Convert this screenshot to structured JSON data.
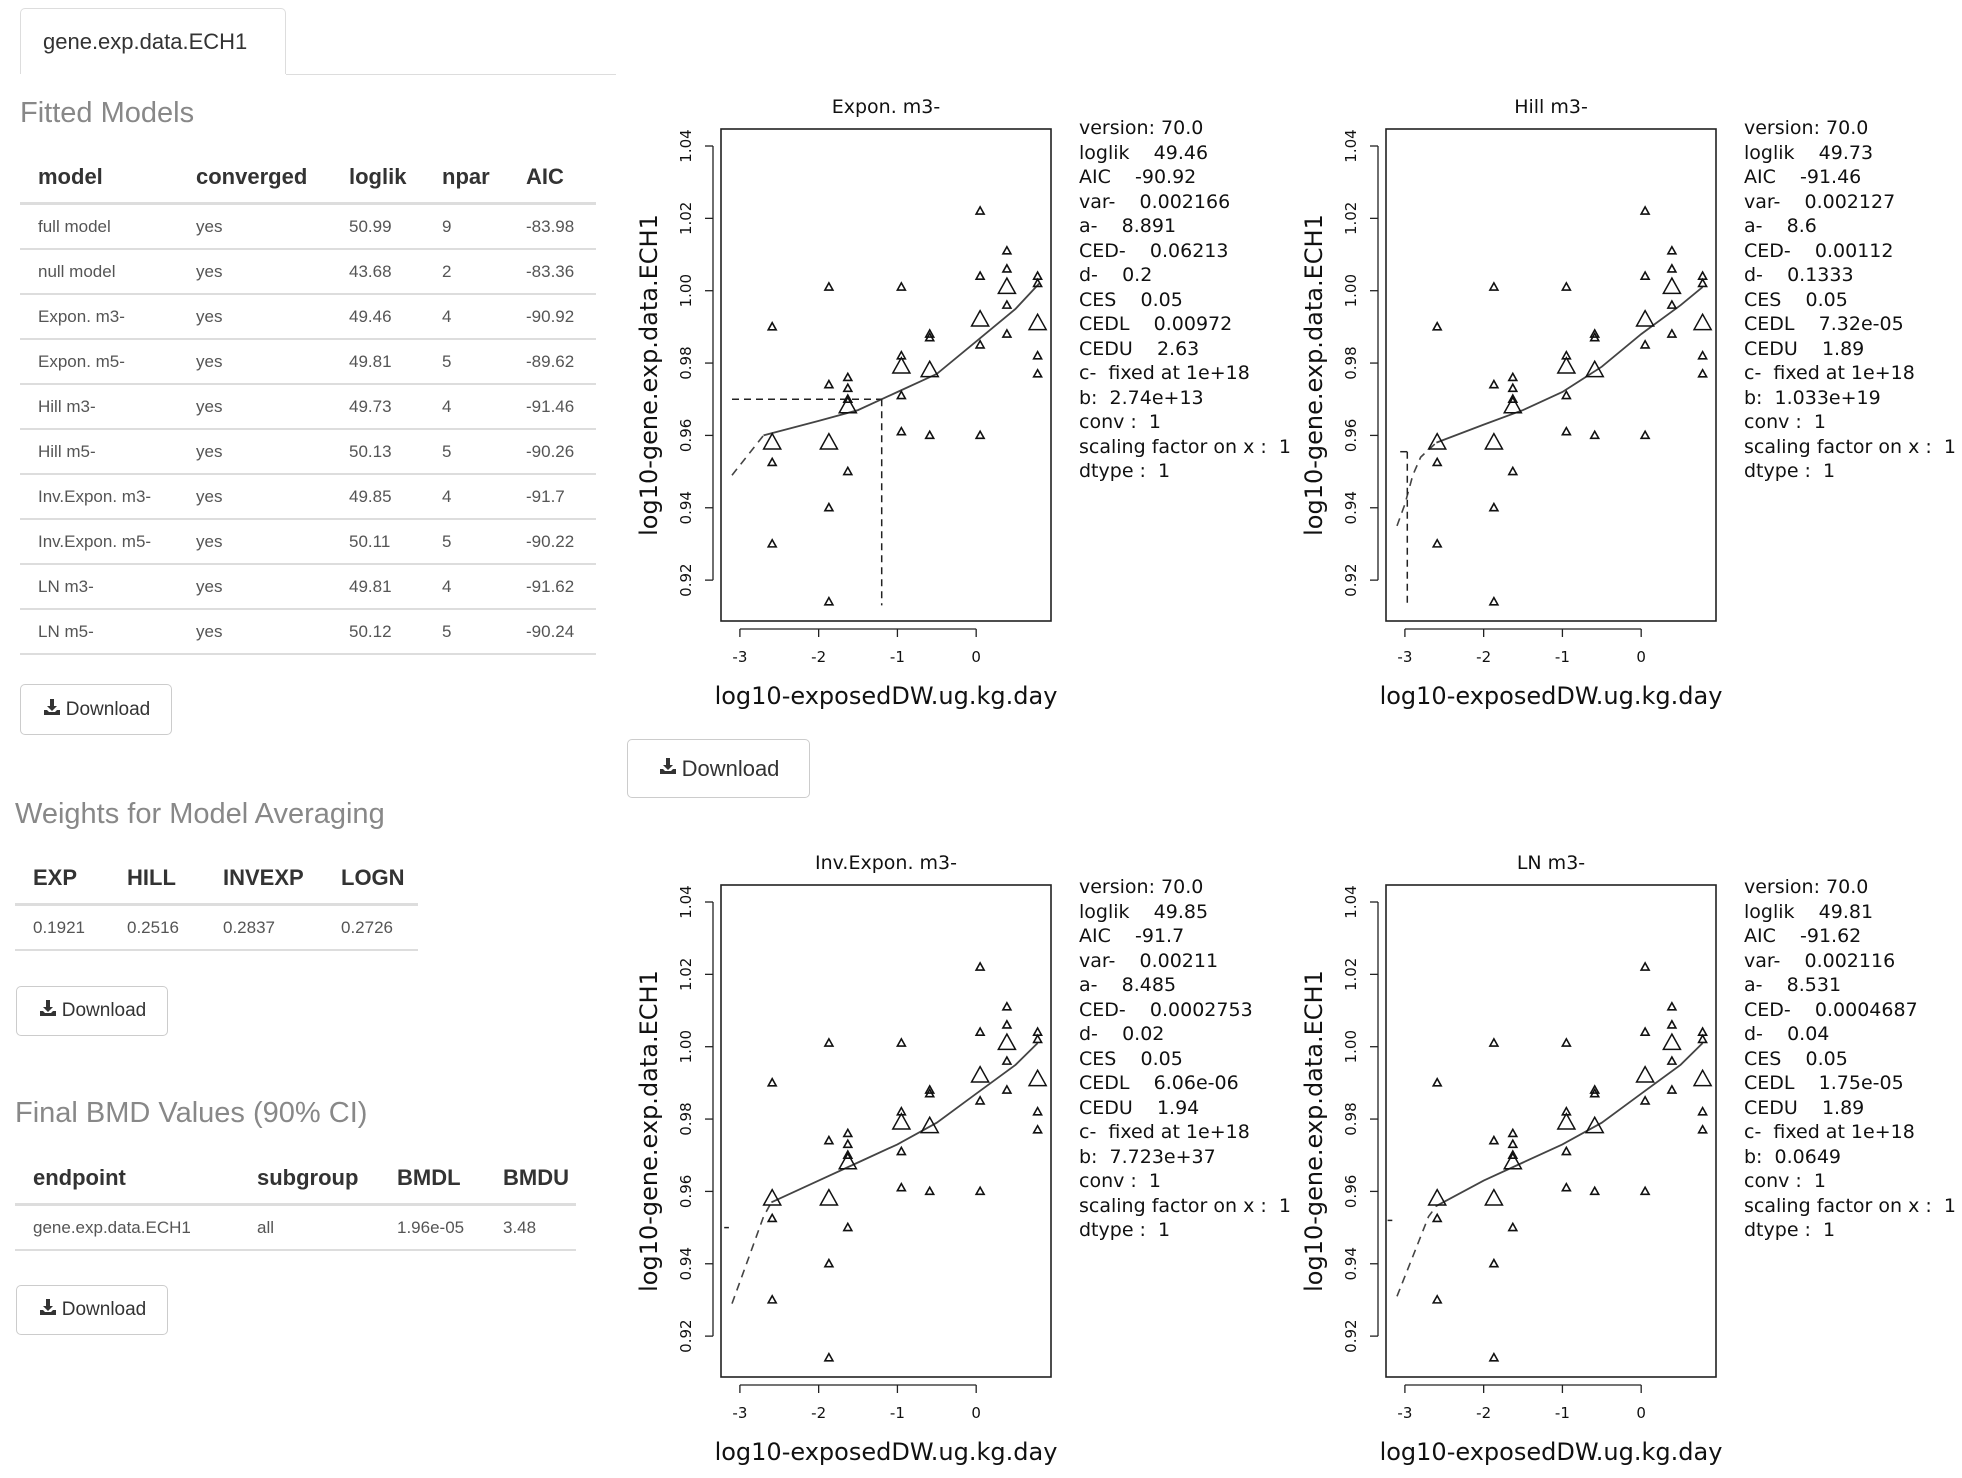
{
  "tab": {
    "label": "gene.exp.data.ECH1"
  },
  "fitted_models": {
    "title": "Fitted Models",
    "columns": [
      "model",
      "converged",
      "loglik",
      "npar",
      "AIC"
    ],
    "rows": [
      [
        "full model",
        "yes",
        "50.99",
        "9",
        "-83.98"
      ],
      [
        "null model",
        "yes",
        "43.68",
        "2",
        "-83.36"
      ],
      [
        "Expon. m3-",
        "yes",
        "49.46",
        "4",
        "-90.92"
      ],
      [
        "Expon. m5-",
        "yes",
        "49.81",
        "5",
        "-89.62"
      ],
      [
        "Hill m3-",
        "yes",
        "49.73",
        "4",
        "-91.46"
      ],
      [
        "Hill m5-",
        "yes",
        "50.13",
        "5",
        "-90.26"
      ],
      [
        "Inv.Expon. m3-",
        "yes",
        "49.85",
        "4",
        "-91.7"
      ],
      [
        "Inv.Expon. m5-",
        "yes",
        "50.11",
        "5",
        "-90.22"
      ],
      [
        "LN m3-",
        "yes",
        "49.81",
        "4",
        "-91.62"
      ],
      [
        "LN m5-",
        "yes",
        "50.12",
        "5",
        "-90.24"
      ]
    ],
    "download_label": "Download"
  },
  "weights": {
    "title": "Weights for Model Averaging",
    "columns": [
      "EXP",
      "HILL",
      "INVEXP",
      "LOGN"
    ],
    "rows": [
      [
        "0.1921",
        "0.2516",
        "0.2837",
        "0.2726"
      ]
    ],
    "download_label": "Download"
  },
  "bmd": {
    "title": "Final BMD Values (90% CI)",
    "columns": [
      "endpoint",
      "subgroup",
      "BMDL",
      "BMDU"
    ],
    "rows": [
      [
        "gene.exp.data.ECH1",
        "all",
        "1.96e-05",
        "3.48"
      ]
    ],
    "download_label": "Download"
  },
  "plots_download_label": "Download",
  "icons": {
    "download": "download-icon"
  },
  "chart_data": [
    {
      "type": "scatter",
      "title": "Expon. m3-",
      "xlabel": "log10-exposedDW.ug.kg.day",
      "ylabel": "log10-gene.exp.data.ECH1",
      "xlim": [
        -3.24,
        0.95
      ],
      "ylim": [
        0.9087,
        1.0447
      ],
      "xticks": [
        "-3",
        "-2",
        "-1",
        "0"
      ],
      "yticks": [
        "0.92",
        "0.94",
        "0.96",
        "0.98",
        "1.00",
        "1.02",
        "1.04"
      ],
      "observations": [
        [
          -2.59,
          0.99
        ],
        [
          -2.59,
          0.9525
        ],
        [
          -2.59,
          0.93
        ],
        [
          -1.87,
          1.001
        ],
        [
          -1.87,
          0.974
        ],
        [
          -1.87,
          0.94
        ],
        [
          -1.87,
          0.914
        ],
        [
          -1.63,
          0.976
        ],
        [
          -1.63,
          0.973
        ],
        [
          -1.63,
          0.97
        ],
        [
          -1.63,
          0.95
        ],
        [
          -0.95,
          1.001
        ],
        [
          -0.95,
          0.982
        ],
        [
          -0.95,
          0.971
        ],
        [
          -0.95,
          0.961
        ],
        [
          -0.59,
          0.988
        ],
        [
          -0.59,
          0.987
        ],
        [
          -0.59,
          0.96
        ],
        [
          0.05,
          1.022
        ],
        [
          0.05,
          1.004
        ],
        [
          0.05,
          0.985
        ],
        [
          0.05,
          0.96
        ],
        [
          0.39,
          1.011
        ],
        [
          0.39,
          1.006
        ],
        [
          0.39,
          0.996
        ],
        [
          0.39,
          0.988
        ],
        [
          0.78,
          1.004
        ],
        [
          0.78,
          1.002
        ],
        [
          0.78,
          0.982
        ],
        [
          0.78,
          0.977
        ]
      ],
      "group_means": [
        [
          -2.59,
          0.958
        ],
        [
          -1.87,
          0.958
        ],
        [
          -1.63,
          0.968
        ],
        [
          -0.95,
          0.979
        ],
        [
          -0.59,
          0.978
        ],
        [
          0.05,
          0.992
        ],
        [
          0.39,
          1.001
        ],
        [
          0.78,
          0.991
        ]
      ],
      "fit_curve": [
        [
          -2.7,
          0.96
        ],
        [
          -2.0,
          0.964
        ],
        [
          -1.5,
          0.967
        ],
        [
          -1.2,
          0.97
        ],
        [
          -1.0,
          0.972
        ],
        [
          -0.5,
          0.977
        ],
        [
          0.0,
          0.986
        ],
        [
          0.5,
          0.995
        ],
        [
          0.8,
          1.002
        ]
      ],
      "fit_extrapolation": [
        [
          -3.1,
          0.949
        ],
        [
          -2.7,
          0.96
        ]
      ],
      "ced_lines": [
        [
          [
            -3.1,
            0.97
          ],
          [
            -1.2,
            0.97
          ]
        ],
        [
          [
            -1.2,
            0.97
          ],
          [
            -1.2,
            0.913
          ]
        ]
      ],
      "info": [
        "version: 70.0",
        "loglik    49.46",
        "AIC    -90.92",
        "var-    0.002166",
        "a-    8.891",
        "CED-    0.06213",
        "d-    0.2",
        "CES    0.05",
        "CEDL    0.00972",
        "CEDU    2.63",
        "c-  fixed at 1e+18",
        "b:  2.74e+13",
        "conv :  1",
        "scaling factor on x :  1",
        "dtype :  1"
      ]
    },
    {
      "type": "scatter",
      "title": "Hill m3-",
      "xlabel": "log10-exposedDW.ug.kg.day",
      "ylabel": "log10-gene.exp.data.ECH1",
      "xlim": [
        -3.24,
        0.95
      ],
      "ylim": [
        0.9087,
        1.0447
      ],
      "xticks": [
        "-3",
        "-2",
        "-1",
        "0"
      ],
      "yticks": [
        "0.92",
        "0.94",
        "0.96",
        "0.98",
        "1.00",
        "1.02",
        "1.04"
      ],
      "observations": [
        [
          -2.59,
          0.99
        ],
        [
          -2.59,
          0.9525
        ],
        [
          -2.59,
          0.93
        ],
        [
          -1.87,
          1.001
        ],
        [
          -1.87,
          0.974
        ],
        [
          -1.87,
          0.94
        ],
        [
          -1.87,
          0.914
        ],
        [
          -1.63,
          0.976
        ],
        [
          -1.63,
          0.973
        ],
        [
          -1.63,
          0.97
        ],
        [
          -1.63,
          0.95
        ],
        [
          -0.95,
          1.001
        ],
        [
          -0.95,
          0.982
        ],
        [
          -0.95,
          0.971
        ],
        [
          -0.95,
          0.961
        ],
        [
          -0.59,
          0.988
        ],
        [
          -0.59,
          0.987
        ],
        [
          -0.59,
          0.96
        ],
        [
          0.05,
          1.022
        ],
        [
          0.05,
          1.004
        ],
        [
          0.05,
          0.985
        ],
        [
          0.05,
          0.96
        ],
        [
          0.39,
          1.011
        ],
        [
          0.39,
          1.006
        ],
        [
          0.39,
          0.996
        ],
        [
          0.39,
          0.988
        ],
        [
          0.78,
          1.004
        ],
        [
          0.78,
          1.002
        ],
        [
          0.78,
          0.982
        ],
        [
          0.78,
          0.977
        ]
      ],
      "group_means": [
        [
          -2.59,
          0.958
        ],
        [
          -1.87,
          0.958
        ],
        [
          -1.63,
          0.968
        ],
        [
          -0.95,
          0.979
        ],
        [
          -0.59,
          0.978
        ],
        [
          0.05,
          0.992
        ],
        [
          0.39,
          1.001
        ],
        [
          0.78,
          0.991
        ]
      ],
      "fit_curve": [
        [
          -2.6,
          0.958
        ],
        [
          -2.0,
          0.963
        ],
        [
          -1.5,
          0.967
        ],
        [
          -1.0,
          0.972
        ],
        [
          -0.5,
          0.979
        ],
        [
          0.0,
          0.988
        ],
        [
          0.5,
          0.996
        ],
        [
          0.78,
          1.001
        ]
      ],
      "fit_extrapolation": [
        [
          -3.1,
          0.935
        ],
        [
          -3.0,
          0.941
        ],
        [
          -2.9,
          0.949
        ],
        [
          -2.8,
          0.954
        ],
        [
          -2.6,
          0.958
        ]
      ],
      "ced_lines": [
        [
          [
            -3.06,
            0.9555
          ],
          [
            -2.97,
            0.9555
          ]
        ],
        [
          [
            -2.97,
            0.9555
          ],
          [
            -2.97,
            0.913
          ]
        ]
      ],
      "info": [
        "version: 70.0",
        "loglik    49.73",
        "AIC    -91.46",
        "var-    0.002127",
        "a-    8.6",
        "CED-    0.00112",
        "d-    0.1333",
        "CES    0.05",
        "CEDL    7.32e-05",
        "CEDU    1.89",
        "c-  fixed at 1e+18",
        "b:  1.033e+19",
        "conv :  1",
        "scaling factor on x :  1",
        "dtype :  1"
      ]
    },
    {
      "type": "scatter",
      "title": "Inv.Expon. m3-",
      "xlabel": "log10-exposedDW.ug.kg.day",
      "ylabel": "log10-gene.exp.data.ECH1",
      "xlim": [
        -3.24,
        0.95
      ],
      "ylim": [
        0.9087,
        1.0447
      ],
      "xticks": [
        "-3",
        "-2",
        "-1",
        "0"
      ],
      "yticks": [
        "0.92",
        "0.94",
        "0.96",
        "0.98",
        "1.00",
        "1.02",
        "1.04"
      ],
      "observations": [
        [
          -2.59,
          0.99
        ],
        [
          -2.59,
          0.9525
        ],
        [
          -2.59,
          0.93
        ],
        [
          -1.87,
          1.001
        ],
        [
          -1.87,
          0.974
        ],
        [
          -1.87,
          0.94
        ],
        [
          -1.87,
          0.914
        ],
        [
          -1.63,
          0.976
        ],
        [
          -1.63,
          0.973
        ],
        [
          -1.63,
          0.97
        ],
        [
          -1.63,
          0.95
        ],
        [
          -0.95,
          1.001
        ],
        [
          -0.95,
          0.982
        ],
        [
          -0.95,
          0.971
        ],
        [
          -0.95,
          0.961
        ],
        [
          -0.59,
          0.988
        ],
        [
          -0.59,
          0.987
        ],
        [
          -0.59,
          0.96
        ],
        [
          0.05,
          1.022
        ],
        [
          0.05,
          1.004
        ],
        [
          0.05,
          0.985
        ],
        [
          0.05,
          0.96
        ],
        [
          0.39,
          1.011
        ],
        [
          0.39,
          1.006
        ],
        [
          0.39,
          0.996
        ],
        [
          0.39,
          0.988
        ],
        [
          0.78,
          1.004
        ],
        [
          0.78,
          1.002
        ],
        [
          0.78,
          0.982
        ],
        [
          0.78,
          0.977
        ]
      ],
      "group_means": [
        [
          -2.59,
          0.958
        ],
        [
          -1.87,
          0.958
        ],
        [
          -1.63,
          0.968
        ],
        [
          -0.95,
          0.979
        ],
        [
          -0.59,
          0.978
        ],
        [
          0.05,
          0.992
        ],
        [
          0.39,
          1.001
        ],
        [
          0.78,
          0.991
        ]
      ],
      "fit_curve": [
        [
          -2.6,
          0.957
        ],
        [
          -2.0,
          0.963
        ],
        [
          -1.5,
          0.968
        ],
        [
          -1.0,
          0.973
        ],
        [
          -0.5,
          0.979
        ],
        [
          0.0,
          0.987
        ],
        [
          0.5,
          0.995
        ],
        [
          0.78,
          1.001
        ]
      ],
      "fit_extrapolation": [
        [
          -3.1,
          0.929
        ],
        [
          -2.9,
          0.941
        ],
        [
          -2.7,
          0.953
        ],
        [
          -2.6,
          0.957
        ]
      ],
      "ced_lines": [
        [
          [
            -3.2,
            0.95
          ],
          [
            -3.14,
            0.95
          ]
        ]
      ],
      "info": [
        "version: 70.0",
        "loglik    49.85",
        "AIC    -91.7",
        "var-    0.00211",
        "a-    8.485",
        "CED-    0.0002753",
        "d-    0.02",
        "CES    0.05",
        "CEDL    6.06e-06",
        "CEDU    1.94",
        "c-  fixed at 1e+18",
        "b:  7.723e+37",
        "conv :  1",
        "scaling factor on x :  1",
        "dtype :  1"
      ]
    },
    {
      "type": "scatter",
      "title": "LN m3-",
      "xlabel": "log10-exposedDW.ug.kg.day",
      "ylabel": "log10-gene.exp.data.ECH1",
      "xlim": [
        -3.24,
        0.95
      ],
      "ylim": [
        0.9087,
        1.0447
      ],
      "xticks": [
        "-3",
        "-2",
        "-1",
        "0"
      ],
      "yticks": [
        "0.92",
        "0.94",
        "0.96",
        "0.98",
        "1.00",
        "1.02",
        "1.04"
      ],
      "observations": [
        [
          -2.59,
          0.99
        ],
        [
          -2.59,
          0.9525
        ],
        [
          -2.59,
          0.93
        ],
        [
          -1.87,
          1.001
        ],
        [
          -1.87,
          0.974
        ],
        [
          -1.87,
          0.94
        ],
        [
          -1.87,
          0.914
        ],
        [
          -1.63,
          0.976
        ],
        [
          -1.63,
          0.973
        ],
        [
          -1.63,
          0.97
        ],
        [
          -1.63,
          0.95
        ],
        [
          -0.95,
          1.001
        ],
        [
          -0.95,
          0.982
        ],
        [
          -0.95,
          0.971
        ],
        [
          -0.95,
          0.961
        ],
        [
          -0.59,
          0.988
        ],
        [
          -0.59,
          0.987
        ],
        [
          -0.59,
          0.96
        ],
        [
          0.05,
          1.022
        ],
        [
          0.05,
          1.004
        ],
        [
          0.05,
          0.985
        ],
        [
          0.05,
          0.96
        ],
        [
          0.39,
          1.011
        ],
        [
          0.39,
          1.006
        ],
        [
          0.39,
          0.996
        ],
        [
          0.39,
          0.988
        ],
        [
          0.78,
          1.004
        ],
        [
          0.78,
          1.002
        ],
        [
          0.78,
          0.982
        ],
        [
          0.78,
          0.977
        ]
      ],
      "group_means": [
        [
          -2.59,
          0.958
        ],
        [
          -1.87,
          0.958
        ],
        [
          -1.63,
          0.968
        ],
        [
          -0.95,
          0.979
        ],
        [
          -0.59,
          0.978
        ],
        [
          0.05,
          0.992
        ],
        [
          0.39,
          1.001
        ],
        [
          0.78,
          0.991
        ]
      ],
      "fit_curve": [
        [
          -2.6,
          0.956
        ],
        [
          -2.0,
          0.963
        ],
        [
          -1.5,
          0.968
        ],
        [
          -1.0,
          0.973
        ],
        [
          -0.5,
          0.979
        ],
        [
          0.0,
          0.987
        ],
        [
          0.5,
          0.995
        ],
        [
          0.78,
          1.001
        ]
      ],
      "fit_extrapolation": [
        [
          -3.1,
          0.931
        ],
        [
          -2.9,
          0.942
        ],
        [
          -2.7,
          0.953
        ],
        [
          -2.6,
          0.956
        ]
      ],
      "ced_lines": [
        [
          [
            -3.22,
            0.952
          ],
          [
            -3.16,
            0.952
          ]
        ]
      ],
      "info": [
        "version: 70.0",
        "loglik    49.81",
        "AIC    -91.62",
        "var-    0.002116",
        "a-    8.531",
        "CED-    0.0004687",
        "d-    0.04",
        "CES    0.05",
        "CEDL    1.75e-05",
        "CEDU    1.89",
        "c-  fixed at 1e+18",
        "b:  0.0649",
        "conv :  1",
        "scaling factor on x :  1",
        "dtype :  1"
      ]
    }
  ]
}
